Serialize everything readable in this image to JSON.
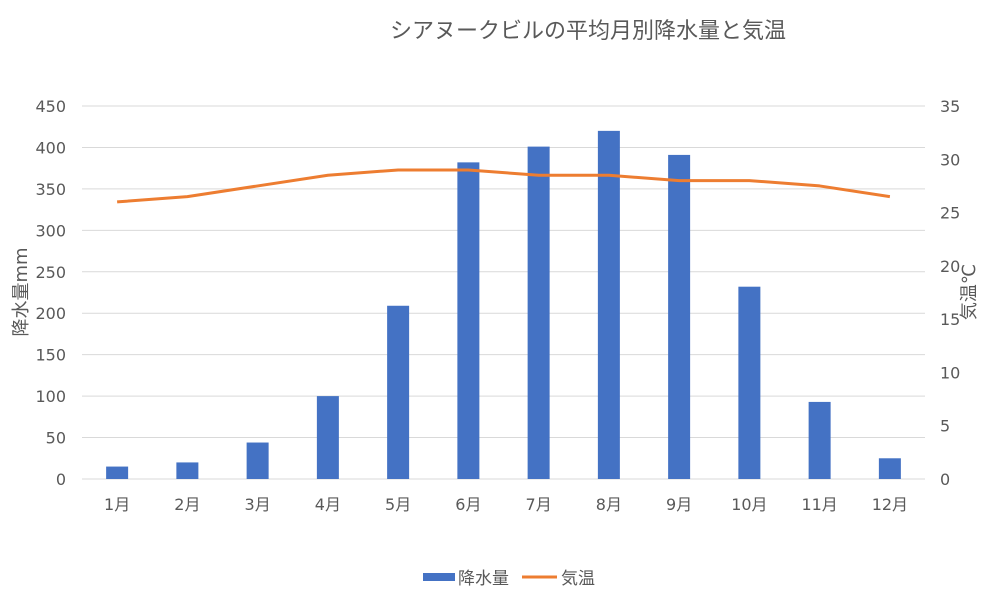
{
  "chart_data": {
    "type": "bar",
    "title": "シアヌークビルの平均月別降水量と気温",
    "categories": [
      "1月",
      "2月",
      "3月",
      "4月",
      "5月",
      "6月",
      "7月",
      "8月",
      "9月",
      "10月",
      "11月",
      "12月"
    ],
    "series": [
      {
        "name": "降水量",
        "type": "bar",
        "axis": "left",
        "color": "#4472c4",
        "values": [
          15,
          20,
          44,
          100,
          209,
          382,
          401,
          420,
          391,
          232,
          93,
          25
        ]
      },
      {
        "name": "気温",
        "type": "line",
        "axis": "right",
        "color": "#ed7d31",
        "values": [
          26,
          26.5,
          27.5,
          28.5,
          29,
          29,
          28.5,
          28.5,
          28,
          28,
          27.5,
          26.5
        ]
      }
    ],
    "ylabel_left": "降水量mm",
    "ylabel_right": "気温℃",
    "ylim_left": [
      0,
      450
    ],
    "yticks_left": [
      0,
      50,
      100,
      150,
      200,
      250,
      300,
      350,
      400,
      450
    ],
    "ylim_right": [
      0,
      35
    ],
    "yticks_right": [
      0,
      5,
      10,
      15,
      20,
      25,
      30,
      35
    ],
    "grid": true,
    "legend_position": "bottom"
  }
}
